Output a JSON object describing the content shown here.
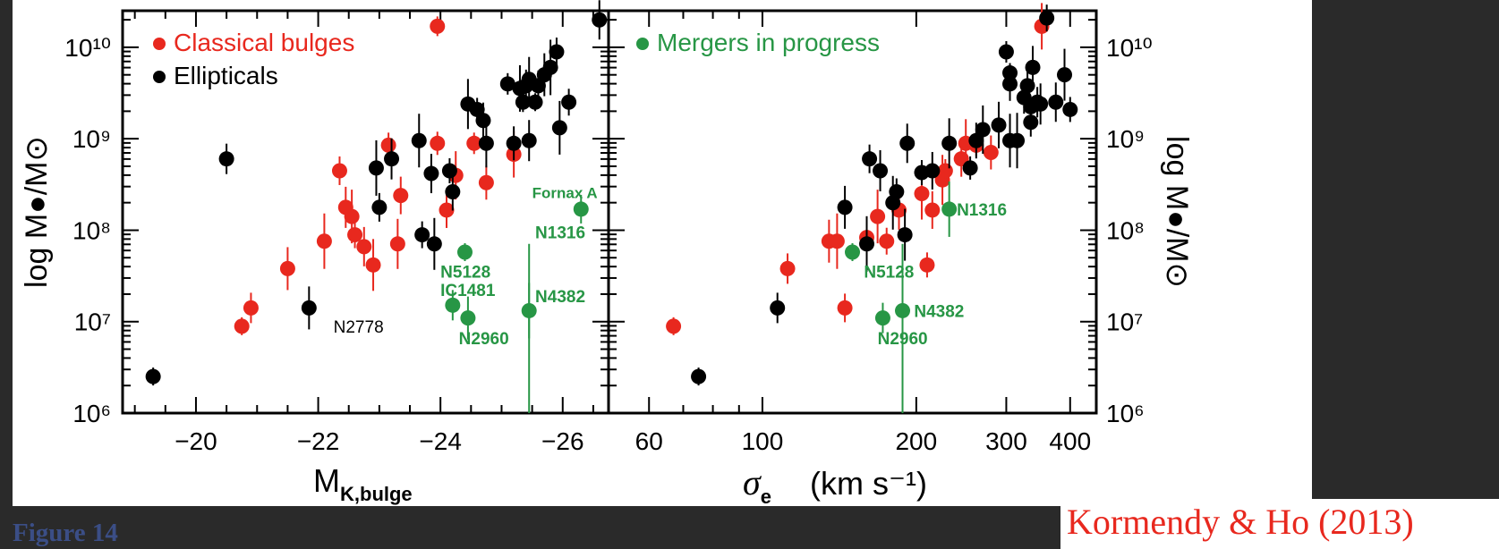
{
  "figure_label": "Figure 14",
  "credit": "Kormendy & Ho (2013)",
  "colors": {
    "classical": "#e8281e",
    "elliptical": "#000000",
    "merger": "#279645",
    "credit": "#e8281e",
    "figure_label": "#3b4e86"
  },
  "chart_data": [
    {
      "type": "scatter",
      "xlabel_main": "M",
      "xlabel_sub": "K,bulge",
      "ylabel": "log M●/M⊙",
      "xlim": [
        -18.8,
        -26.75
      ],
      "ylim_log10": [
        6,
        10.4
      ],
      "xticks": [
        -20,
        -22,
        -24,
        -26
      ],
      "xtick_labels": [
        "−20",
        "−22",
        "−24",
        "−26"
      ],
      "yticks": [
        6,
        7,
        8,
        9,
        10
      ],
      "ytick_labels": [
        "10⁶",
        "10⁷",
        "10⁸",
        "10⁹",
        "10¹⁰"
      ],
      "legend": [
        {
          "label": "Classical bulges",
          "color": "#e8281e"
        },
        {
          "label": "Ellipticals",
          "color": "#000000"
        }
      ],
      "series": [
        {
          "name": "Classical bulges",
          "color": "#e8281e",
          "points": [
            [
              -20.75,
              6.95
            ],
            [
              -20.9,
              7.15
            ],
            [
              -21.5,
              7.58
            ],
            [
              -22.1,
              7.88
            ],
            [
              -22.35,
              8.65
            ],
            [
              -22.45,
              8.25
            ],
            [
              -22.55,
              8.15
            ],
            [
              -22.6,
              7.95
            ],
            [
              -22.75,
              7.82
            ],
            [
              -22.9,
              7.62
            ],
            [
              -23.15,
              8.93
            ],
            [
              -23.35,
              8.38
            ],
            [
              -23.3,
              7.85
            ],
            [
              -23.95,
              8.95
            ],
            [
              -24.1,
              8.22
            ],
            [
              -24.25,
              8.6
            ],
            [
              -24.55,
              8.95
            ],
            [
              -24.75,
              8.52
            ],
            [
              -25.2,
              8.83
            ],
            [
              -23.95,
              10.23
            ]
          ]
        },
        {
          "name": "Ellipticals",
          "color": "#000000",
          "points": [
            [
              -19.3,
              6.4
            ],
            [
              -20.5,
              8.78
            ],
            [
              -21.85,
              7.15
            ],
            [
              -22.95,
              8.68
            ],
            [
              -23.0,
              8.25
            ],
            [
              -23.2,
              8.78
            ],
            [
              -23.65,
              8.98
            ],
            [
              -23.7,
              7.95
            ],
            [
              -23.85,
              8.62
            ],
            [
              -23.9,
              7.85
            ],
            [
              -24.15,
              8.65
            ],
            [
              -24.2,
              8.42
            ],
            [
              -24.45,
              9.38
            ],
            [
              -24.6,
              9.32
            ],
            [
              -24.7,
              9.2
            ],
            [
              -24.75,
              8.95
            ],
            [
              -25.1,
              9.6
            ],
            [
              -25.2,
              8.95
            ],
            [
              -25.3,
              9.55
            ],
            [
              -25.35,
              9.4
            ],
            [
              -25.4,
              9.58
            ],
            [
              -25.45,
              9.65
            ],
            [
              -25.55,
              9.4
            ],
            [
              -25.6,
              9.58
            ],
            [
              -25.7,
              9.7
            ],
            [
              -25.8,
              9.78
            ],
            [
              -25.9,
              9.95
            ],
            [
              -25.45,
              8.98
            ],
            [
              -25.95,
              9.12
            ],
            [
              -26.1,
              9.4
            ],
            [
              -26.6,
              10.3
            ]
          ]
        },
        {
          "name": "Mergers in progress",
          "color": "#279645",
          "points": [
            [
              -24.4,
              7.76
            ],
            [
              -24.2,
              7.18
            ],
            [
              -24.45,
              7.04
            ],
            [
              -25.45,
              7.12
            ],
            [
              -26.3,
              8.23
            ]
          ]
        }
      ],
      "annotations": [
        {
          "text": "N2778",
          "x": -22.25,
          "y": 6.95,
          "color": "#000000"
        },
        {
          "text": "N5128",
          "x": -24.0,
          "y": 7.55,
          "color": "#279645"
        },
        {
          "text": "IC1481",
          "x": -24.0,
          "y": 7.35,
          "color": "#279645"
        },
        {
          "text": "N2960",
          "x": -24.3,
          "y": 6.82,
          "color": "#279645"
        },
        {
          "text": "N4382",
          "x": -25.55,
          "y": 7.28,
          "color": "#279645"
        },
        {
          "text": "Fornax A",
          "x": -25.5,
          "y": 8.42,
          "color": "#279645"
        },
        {
          "text": "N1316",
          "x": -25.55,
          "y": 7.98,
          "color": "#279645"
        }
      ]
    },
    {
      "type": "scatter",
      "xlabel": "σ",
      "xlabel_sub": "e",
      "xlabel_units": "(km s⁻¹)",
      "ylabel": "log M●/M⊙",
      "xscale": "log",
      "xlim": [
        50,
        450
      ],
      "ylim_log10": [
        6,
        10.4
      ],
      "xticks": [
        60,
        100,
        200,
        300,
        400
      ],
      "xtick_labels": [
        "60",
        "100",
        "200",
        "300",
        "400"
      ],
      "yticks": [
        6,
        7,
        8,
        9,
        10
      ],
      "ytick_labels": [
        "10⁶",
        "10⁷",
        "10⁸",
        "10⁹",
        "10¹⁰"
      ],
      "legend": [
        {
          "label": "Mergers in progress",
          "color": "#279645"
        }
      ],
      "series": [
        {
          "name": "Classical bulges",
          "color": "#e8281e",
          "points": [
            [
              67,
              6.95
            ],
            [
              112,
              7.58
            ],
            [
              135,
              7.88
            ],
            [
              140,
              7.88
            ],
            [
              145,
              7.15
            ],
            [
              160,
              7.92
            ],
            [
              168,
              8.15
            ],
            [
              175,
              7.88
            ],
            [
              185,
              8.22
            ],
            [
              205,
              8.4
            ],
            [
              210,
              7.62
            ],
            [
              215,
              8.22
            ],
            [
              225,
              8.55
            ],
            [
              228,
              8.65
            ],
            [
              245,
              8.78
            ],
            [
              250,
              8.95
            ],
            [
              262,
              8.93
            ],
            [
              280,
              8.85
            ],
            [
              352,
              10.23
            ]
          ]
        },
        {
          "name": "Ellipticals",
          "color": "#000000",
          "points": [
            [
              75,
              6.4
            ],
            [
              107,
              7.15
            ],
            [
              145,
              8.25
            ],
            [
              160,
              7.85
            ],
            [
              162,
              8.78
            ],
            [
              170,
              8.65
            ],
            [
              180,
              8.3
            ],
            [
              183,
              8.42
            ],
            [
              192,
              8.95
            ],
            [
              190,
              7.95
            ],
            [
              205,
              8.63
            ],
            [
              215,
              8.65
            ],
            [
              232,
              8.95
            ],
            [
              255,
              8.68
            ],
            [
              262,
              8.98
            ],
            [
              270,
              9.1
            ],
            [
              300,
              9.95
            ],
            [
              305,
              9.6
            ],
            [
              290,
              9.15
            ],
            [
              305,
              9.72
            ],
            [
              325,
              9.45
            ],
            [
              330,
              9.58
            ],
            [
              335,
              9.35
            ],
            [
              345,
              9.4
            ],
            [
              338,
              9.78
            ],
            [
              315,
              8.98
            ],
            [
              335,
              9.18
            ],
            [
              350,
              9.38
            ],
            [
              305,
              8.98
            ],
            [
              360,
              10.32
            ],
            [
              375,
              9.4
            ],
            [
              390,
              9.7
            ],
            [
              400,
              9.32
            ]
          ]
        },
        {
          "name": "Mergers in progress",
          "color": "#279645",
          "points": [
            [
              150,
              7.76
            ],
            [
              172,
              7.04
            ],
            [
              188,
              7.12
            ],
            [
              232,
              8.23
            ]
          ]
        }
      ],
      "annotations": [
        {
          "text": "N5128",
          "x": 158,
          "y": 7.55,
          "color": "#279645"
        },
        {
          "text": "N2960",
          "x": 168,
          "y": 6.82,
          "color": "#279645"
        },
        {
          "text": "N4382",
          "x": 198,
          "y": 7.12,
          "color": "#279645"
        },
        {
          "text": "N1316",
          "x": 240,
          "y": 8.23,
          "color": "#279645"
        }
      ]
    }
  ]
}
